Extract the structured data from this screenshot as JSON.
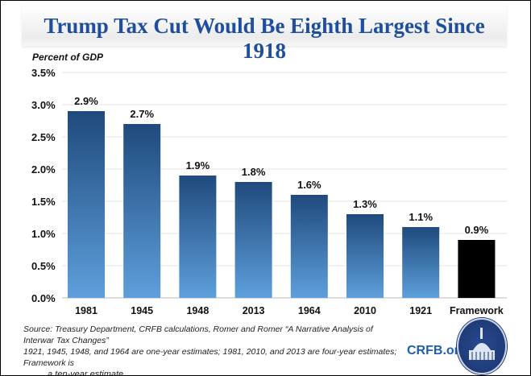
{
  "chart_data": {
    "type": "bar",
    "title": "Trump Tax Cut Would Be Eighth Largest Since 1918",
    "ylabel": "Percent of GDP",
    "xlabel": "",
    "categories": [
      "1981",
      "1945",
      "1948",
      "2013",
      "1964",
      "2010",
      "1921",
      "Framework"
    ],
    "values": [
      2.9,
      2.7,
      1.9,
      1.8,
      1.6,
      1.3,
      1.1,
      0.9
    ],
    "data_labels": [
      "2.9%",
      "2.7%",
      "1.9%",
      "1.8%",
      "1.6%",
      "1.3%",
      "1.1%",
      "0.9%"
    ],
    "ylim": [
      0,
      3.5
    ],
    "yticks": [
      "0.0%",
      "0.5%",
      "1.0%",
      "1.5%",
      "2.0%",
      "2.5%",
      "3.0%",
      "3.5%"
    ],
    "grid": true,
    "colors": {
      "bars_top": "#1f4a7c",
      "bars_bottom": "#5a9ad8",
      "highlight": "#000000",
      "title": "#1f4e9c"
    }
  },
  "footer": {
    "source_line1": "Source: Treasury Department, CRFB calculations, Romer and Romer “A Narrative Analysis of Interwar Tax Changes”",
    "source_line2": "1921, 1945, 1948, and 1964 are one-year estimates; 1981, 2010, and 2013 are four-year estimates;  Framework is",
    "source_line3": "a ten-year estimate.",
    "logo_text": "CRFB.org"
  }
}
